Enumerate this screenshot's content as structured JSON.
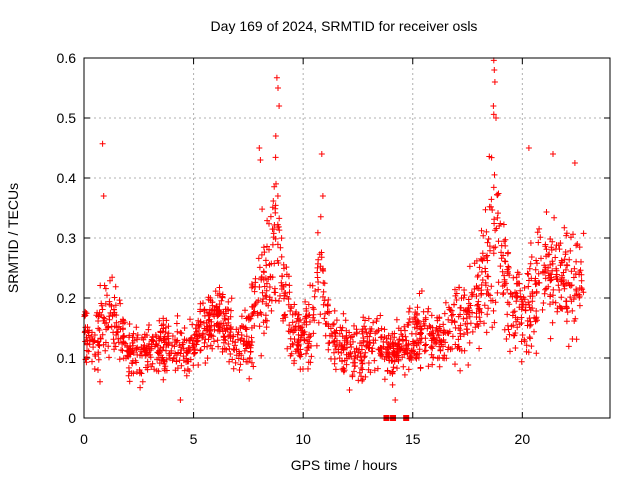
{
  "chart_data": {
    "type": "scatter",
    "title": "Day 169 of 2024, SRMTID for receiver osls",
    "xlabel": "GPS time / hours",
    "ylabel": "SRMTID / TECUs",
    "xlim": [
      0,
      24
    ],
    "ylim": [
      0,
      0.6
    ],
    "xticks": [
      0,
      5,
      10,
      15,
      20
    ],
    "yticks": [
      0,
      0.1,
      0.2,
      0.3,
      0.4,
      0.5,
      0.6
    ],
    "grid": true,
    "marker": "plus",
    "color": "#ff0000",
    "zero_markers_x": [
      13.8,
      14.1,
      14.7
    ],
    "envelope": {
      "x": [
        0.0,
        0.3,
        0.5,
        0.8,
        1.0,
        1.5,
        2.0,
        2.5,
        3.0,
        3.5,
        4.0,
        4.5,
        5.0,
        5.5,
        6.0,
        6.5,
        7.0,
        7.5,
        8.0,
        8.5,
        8.8,
        9.0,
        9.5,
        10.0,
        10.5,
        10.8,
        11.0,
        11.5,
        12.0,
        12.5,
        13.0,
        13.5,
        14.0,
        14.5,
        15.0,
        15.5,
        16.0,
        16.5,
        17.0,
        17.5,
        18.0,
        18.5,
        18.7,
        19.0,
        19.5,
        20.0,
        20.5,
        21.0,
        21.5,
        22.0,
        22.5,
        22.8
      ],
      "center": [
        0.14,
        0.12,
        0.13,
        0.16,
        0.17,
        0.16,
        0.11,
        0.1,
        0.11,
        0.12,
        0.12,
        0.11,
        0.12,
        0.15,
        0.17,
        0.15,
        0.13,
        0.13,
        0.22,
        0.25,
        0.3,
        0.24,
        0.14,
        0.13,
        0.18,
        0.26,
        0.17,
        0.12,
        0.11,
        0.11,
        0.12,
        0.13,
        0.1,
        0.12,
        0.13,
        0.15,
        0.13,
        0.14,
        0.16,
        0.17,
        0.2,
        0.28,
        0.32,
        0.27,
        0.18,
        0.17,
        0.21,
        0.24,
        0.25,
        0.23,
        0.22,
        0.25
      ],
      "spread": [
        0.05,
        0.05,
        0.06,
        0.07,
        0.06,
        0.05,
        0.04,
        0.04,
        0.04,
        0.05,
        0.05,
        0.04,
        0.04,
        0.05,
        0.04,
        0.05,
        0.05,
        0.06,
        0.09,
        0.11,
        0.15,
        0.09,
        0.06,
        0.06,
        0.08,
        0.1,
        0.06,
        0.05,
        0.05,
        0.05,
        0.05,
        0.05,
        0.04,
        0.05,
        0.05,
        0.05,
        0.05,
        0.05,
        0.06,
        0.07,
        0.08,
        0.13,
        0.16,
        0.1,
        0.07,
        0.07,
        0.08,
        0.09,
        0.08,
        0.08,
        0.08,
        0.08
      ]
    },
    "peaks": [
      {
        "x": 0.85,
        "y": 0.457
      },
      {
        "x": 0.9,
        "y": 0.37
      },
      {
        "x": 8.0,
        "y": 0.45
      },
      {
        "x": 8.05,
        "y": 0.43
      },
      {
        "x": 8.8,
        "y": 0.567
      },
      {
        "x": 8.85,
        "y": 0.55
      },
      {
        "x": 8.9,
        "y": 0.52
      },
      {
        "x": 8.75,
        "y": 0.47
      },
      {
        "x": 10.85,
        "y": 0.44
      },
      {
        "x": 10.9,
        "y": 0.37
      },
      {
        "x": 18.7,
        "y": 0.596
      },
      {
        "x": 18.72,
        "y": 0.58
      },
      {
        "x": 18.75,
        "y": 0.56
      },
      {
        "x": 18.68,
        "y": 0.52
      },
      {
        "x": 18.8,
        "y": 0.5
      },
      {
        "x": 20.3,
        "y": 0.45
      },
      {
        "x": 21.4,
        "y": 0.44
      },
      {
        "x": 22.4,
        "y": 0.425
      },
      {
        "x": 14.2,
        "y": 0.03
      },
      {
        "x": 4.4,
        "y": 0.03
      }
    ],
    "n_points": 1800
  }
}
